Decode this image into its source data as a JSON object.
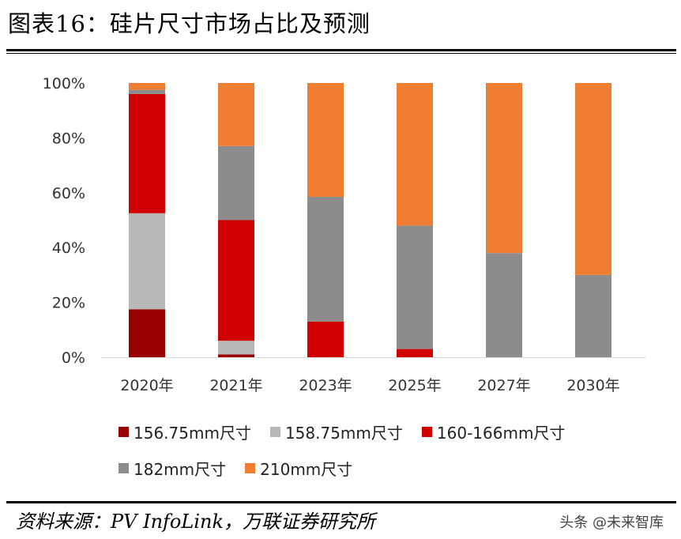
{
  "header": {
    "title": "图表16：硅片尺寸市场占比及预测"
  },
  "source": {
    "text": "资料来源：PV InfoLink，万联证券研究所"
  },
  "watermark": {
    "text": "头条 @未来智库"
  },
  "chart_data": {
    "type": "bar",
    "stacked": true,
    "categories": [
      "2020年",
      "2021年",
      "2023年",
      "2025年",
      "2027年",
      "2030年"
    ],
    "series": [
      {
        "name": "156.75mm尺寸",
        "color": "#9b0000",
        "values": [
          17.5,
          1,
          0,
          0,
          0,
          0
        ]
      },
      {
        "name": "158.75mm尺寸",
        "color": "#b8b8b8",
        "values": [
          35,
          5,
          0,
          0,
          0,
          0
        ]
      },
      {
        "name": "160-166mm尺寸",
        "color": "#d10000",
        "values": [
          43.5,
          44,
          13,
          3,
          0,
          0
        ]
      },
      {
        "name": "182mm尺寸",
        "color": "#8c8c8c",
        "values": [
          1.5,
          27,
          45.5,
          45,
          38,
          30
        ]
      },
      {
        "name": "210mm尺寸",
        "color": "#ef7d31",
        "values": [
          2.5,
          23,
          41.5,
          52,
          62,
          70
        ]
      }
    ],
    "yticks": [
      "0%",
      "20%",
      "40%",
      "60%",
      "80%",
      "100%"
    ],
    "ylim": [
      0,
      100
    ],
    "legend_position": "bottom",
    "grid": false
  }
}
